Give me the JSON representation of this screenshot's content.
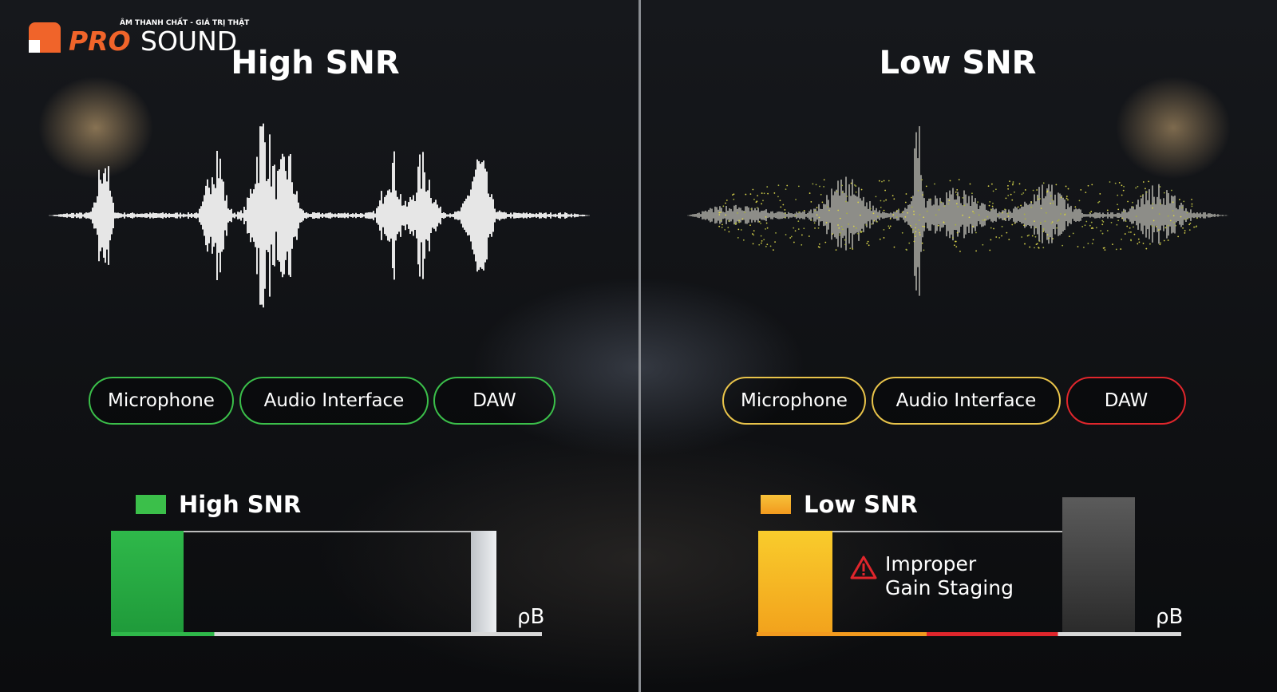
{
  "logo": {
    "tagline": "ÂM THANH CHẤT - GIÁ TRỊ THẬT",
    "brand_a": "PRO",
    "brand_b": "SOUND"
  },
  "left": {
    "title": "High SNR",
    "chain": [
      "Microphone",
      "Audio Interface",
      "DAW"
    ],
    "chain_status_color": "#3bbf4a",
    "legend": "High SNR",
    "legend_color": "#3bbf4a",
    "unit": "ρB",
    "signal_level": 0.17,
    "noise_level": 0.03
  },
  "right": {
    "title": "Low SNR",
    "chain": [
      "Microphone",
      "Audio Interface",
      "DAW"
    ],
    "chain_status_colors": [
      "#e8c34a",
      "#e8c34a",
      "#e0262c"
    ],
    "legend": "Low SNR",
    "legend_color": "#f5a623",
    "unit": "ρB",
    "warning": [
      "Improper",
      "Gain Staging"
    ],
    "warning_icon": "warning-triangle-icon",
    "signal_level": 0.18,
    "noise_level": 1.0
  }
}
